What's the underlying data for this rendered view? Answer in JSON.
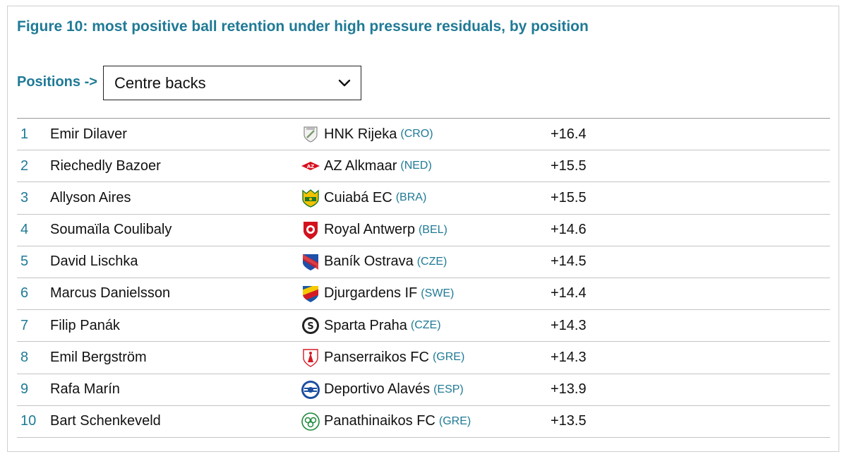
{
  "title": "Figure 10: most positive ball retention under high pressure residuals, by position",
  "filter": {
    "label": "Positions ->",
    "selected": "Centre backs"
  },
  "rows": [
    {
      "rank": "1",
      "player": "Emir Dilaver",
      "club": "HNK Rijeka",
      "country": "(CRO)",
      "value": "+16.4",
      "crest": "rijeka-crest"
    },
    {
      "rank": "2",
      "player": "Riechedly Bazoer",
      "club": "AZ Alkmaar",
      "country": "(NED)",
      "value": "+15.5",
      "crest": "az-crest"
    },
    {
      "rank": "3",
      "player": "Allyson Aires",
      "club": "Cuiabá EC",
      "country": "(BRA)",
      "value": "+15.5",
      "crest": "cuiaba-crest"
    },
    {
      "rank": "4",
      "player": "Soumaïla Coulibaly",
      "club": "Royal Antwerp",
      "country": "(BEL)",
      "value": "+14.6",
      "crest": "antwerp-crest"
    },
    {
      "rank": "5",
      "player": "David Lischka",
      "club": "Baník Ostrava",
      "country": "(CZE)",
      "value": "+14.5",
      "crest": "banik-crest"
    },
    {
      "rank": "6",
      "player": "Marcus Danielsson",
      "club": "Djurgardens IF",
      "country": "(SWE)",
      "value": "+14.4",
      "crest": "djurgarden-crest"
    },
    {
      "rank": "7",
      "player": "Filip Panák",
      "club": "Sparta Praha",
      "country": "(CZE)",
      "value": "+14.3",
      "crest": "sparta-crest"
    },
    {
      "rank": "8",
      "player": "Emil Bergström",
      "club": "Panserraikos FC",
      "country": "(GRE)",
      "value": "+14.3",
      "crest": "panserraikos-crest"
    },
    {
      "rank": "9",
      "player": "Rafa Marín",
      "club": "Deportivo Alavés",
      "country": "(ESP)",
      "value": "+13.9",
      "crest": "alaves-crest"
    },
    {
      "rank": "10",
      "player": "Bart Schenkeveld",
      "club": "Panathinaikos FC",
      "country": "(GRE)",
      "value": "+13.5",
      "crest": "panathinaikos-crest"
    }
  ],
  "colors": {
    "accent": "#1f7a96",
    "text": "#111111",
    "rule": "#c4c4c4"
  }
}
